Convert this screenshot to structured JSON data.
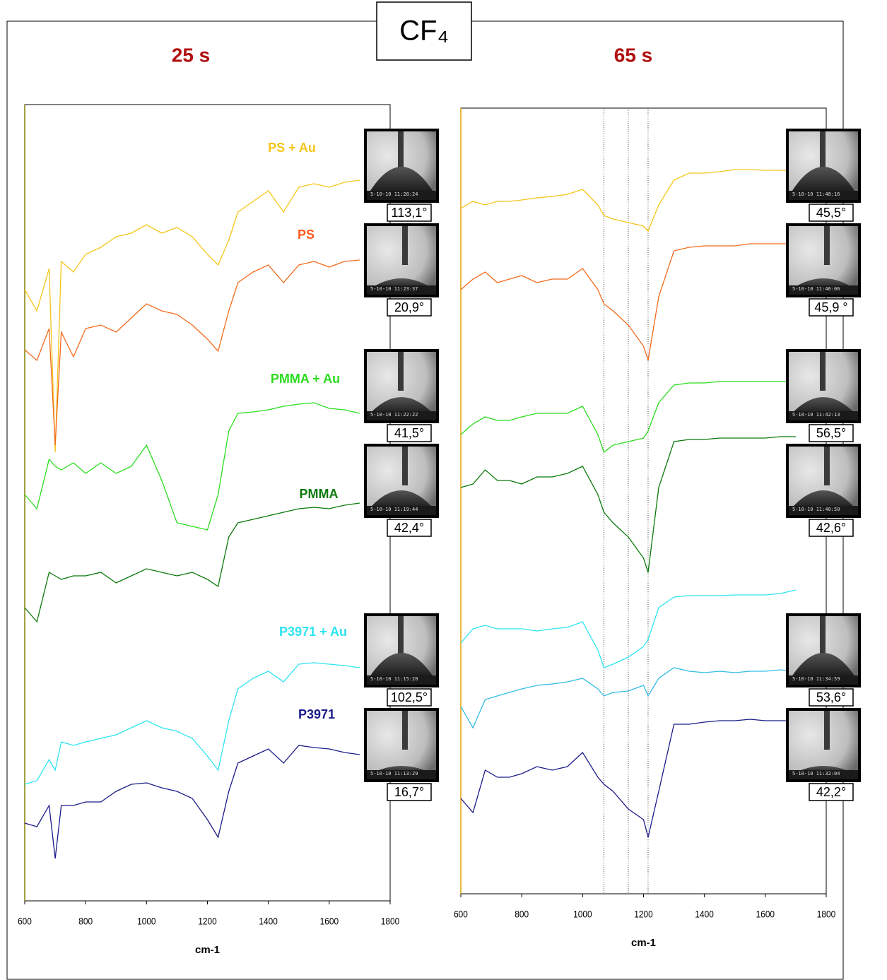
{
  "title": "CF₄",
  "chart_data": [
    {
      "type": "line",
      "title": "25 s",
      "xlabel": "cm-1",
      "xlim": [
        600,
        1800
      ],
      "xticks": [
        600,
        800,
        1000,
        1200,
        1400,
        1600,
        1800
      ],
      "ylim": [
        0,
        1127
      ],
      "x": [
        600,
        640,
        680,
        700,
        720,
        760,
        800,
        850,
        900,
        950,
        1000,
        1050,
        1100,
        1150,
        1200,
        1235,
        1270,
        1300,
        1350,
        1400,
        1450,
        1500,
        1550,
        1600,
        1650,
        1700
      ],
      "series": [
        {
          "name": "PS + Au",
          "color": "#f5c518",
          "values": [
            865,
            835,
            895,
            635,
            905,
            890,
            915,
            925,
            940,
            945,
            957,
            945,
            953,
            940,
            915,
            900,
            935,
            975,
            990,
            1005,
            975,
            1010,
            1015,
            1010,
            1017,
            1020
          ]
        },
        {
          "name": "PS",
          "color": "#f26a1b",
          "values": [
            780,
            765,
            810,
            645,
            805,
            770,
            810,
            815,
            805,
            825,
            845,
            835,
            830,
            815,
            795,
            778,
            835,
            875,
            890,
            900,
            875,
            900,
            905,
            897,
            905,
            907
          ]
        },
        {
          "name": "PMMA + Au",
          "color": "#2bdc1f",
          "values": [
            575,
            555,
            625,
            615,
            610,
            620,
            605,
            620,
            605,
            615,
            645,
            595,
            535,
            530,
            525,
            575,
            665,
            690,
            692,
            695,
            700,
            703,
            705,
            697,
            695,
            690
          ]
        },
        {
          "name": "PMMA",
          "color": "#0b7a0b",
          "values": [
            415,
            395,
            465,
            460,
            455,
            460,
            460,
            465,
            450,
            460,
            470,
            465,
            460,
            465,
            455,
            445,
            515,
            535,
            540,
            545,
            550,
            555,
            557,
            555,
            560,
            563
          ]
        },
        {
          "name": "P3971 + Au",
          "color": "#2ee3f2",
          "values": [
            165,
            170,
            200,
            185,
            225,
            220,
            225,
            230,
            235,
            245,
            255,
            245,
            240,
            230,
            205,
            185,
            255,
            300,
            315,
            325,
            310,
            335,
            337,
            335,
            333,
            330
          ]
        },
        {
          "name": "P3971",
          "color": "#1b1b8a",
          "values": [
            110,
            105,
            135,
            60,
            135,
            135,
            140,
            140,
            155,
            165,
            167,
            160,
            155,
            145,
            115,
            90,
            155,
            195,
            205,
            215,
            195,
            220,
            217,
            215,
            210,
            207
          ]
        }
      ],
      "images": [
        {
          "timestamp": "5-10-10 11:28:24",
          "angle": "113,1°"
        },
        {
          "timestamp": "5-10-10 11:23:37",
          "angle": "20,9°"
        },
        {
          "timestamp": "5-10-10 11:22:22",
          "angle": "41,5°"
        },
        {
          "timestamp": "5-10-10 11:19:44",
          "angle": "42,4°"
        },
        {
          "timestamp": "5-10-10 11:15:20",
          "angle": "102,5°"
        },
        {
          "timestamp": "5-10-10 11:13:29",
          "angle": "16,7°"
        }
      ]
    },
    {
      "type": "line",
      "title": "65 s",
      "xlabel": "cm-1",
      "xlim": [
        600,
        1800
      ],
      "xticks": [
        600,
        800,
        1000,
        1200,
        1400,
        1600,
        1800
      ],
      "ylim": [
        0,
        1112
      ],
      "vlines": [
        1070,
        1150,
        1215
      ],
      "x": [
        600,
        640,
        680,
        720,
        760,
        800,
        850,
        900,
        950,
        1000,
        1050,
        1070,
        1100,
        1150,
        1200,
        1215,
        1250,
        1300,
        1350,
        1400,
        1450,
        1500,
        1550,
        1600,
        1650,
        1700
      ],
      "series": [
        {
          "color": "#f5c518",
          "values": [
            970,
            980,
            975,
            980,
            980,
            982,
            985,
            987,
            990,
            997,
            975,
            960,
            955,
            950,
            945,
            938,
            975,
            1010,
            1020,
            1020,
            1022,
            1025,
            1025,
            1024,
            1024,
            1023
          ]
        },
        {
          "color": "#f26a1b",
          "values": [
            855,
            870,
            880,
            865,
            870,
            875,
            865,
            870,
            870,
            885,
            855,
            835,
            825,
            805,
            775,
            755,
            845,
            910,
            915,
            917,
            917,
            917,
            920,
            920,
            920,
            920
          ]
        },
        {
          "color": "#2bdc1f",
          "values": [
            650,
            665,
            675,
            670,
            670,
            675,
            680,
            680,
            680,
            690,
            650,
            625,
            635,
            640,
            645,
            655,
            695,
            720,
            723,
            723,
            725,
            725,
            725,
            725,
            725,
            725
          ]
        },
        {
          "color": "#0b7a0b",
          "values": [
            575,
            580,
            600,
            585,
            585,
            580,
            590,
            590,
            595,
            605,
            565,
            540,
            525,
            505,
            475,
            455,
            575,
            640,
            643,
            643,
            645,
            645,
            645,
            645,
            647,
            647
          ]
        },
        {
          "color": "#2ee3f2",
          "values": [
            355,
            375,
            380,
            375,
            375,
            375,
            372,
            375,
            377,
            385,
            345,
            320,
            325,
            335,
            350,
            360,
            405,
            420,
            422,
            422,
            422,
            423,
            423,
            423,
            425,
            430
          ]
        },
        {
          "color": "#33bde6",
          "values": [
            265,
            235,
            275,
            280,
            285,
            290,
            295,
            297,
            300,
            305,
            290,
            280,
            285,
            287,
            295,
            280,
            305,
            320,
            315,
            313,
            315,
            313,
            315,
            315,
            317,
            315
          ]
        },
        {
          "color": "#1b1b8a",
          "values": [
            135,
            115,
            175,
            165,
            165,
            170,
            180,
            175,
            180,
            200,
            165,
            155,
            145,
            120,
            105,
            80,
            145,
            240,
            240,
            243,
            245,
            245,
            247,
            245,
            245,
            245
          ]
        }
      ],
      "images": [
        {
          "timestamp": "5-10-10 11:48:16",
          "angle": "45,5°"
        },
        {
          "timestamp": "5-10-10 11:46:06",
          "angle": "45,9 °"
        },
        {
          "timestamp": "5-10-10 11:42:13",
          "angle": "56,5°"
        },
        {
          "timestamp": "5-10-10 11:40:50",
          "angle": "42,6°"
        },
        {
          "timestamp": "5-10-10 11:34:59",
          "angle": "53,6°"
        },
        {
          "timestamp": "5-10-10 11:32:04",
          "angle": "42,2°"
        }
      ]
    }
  ]
}
